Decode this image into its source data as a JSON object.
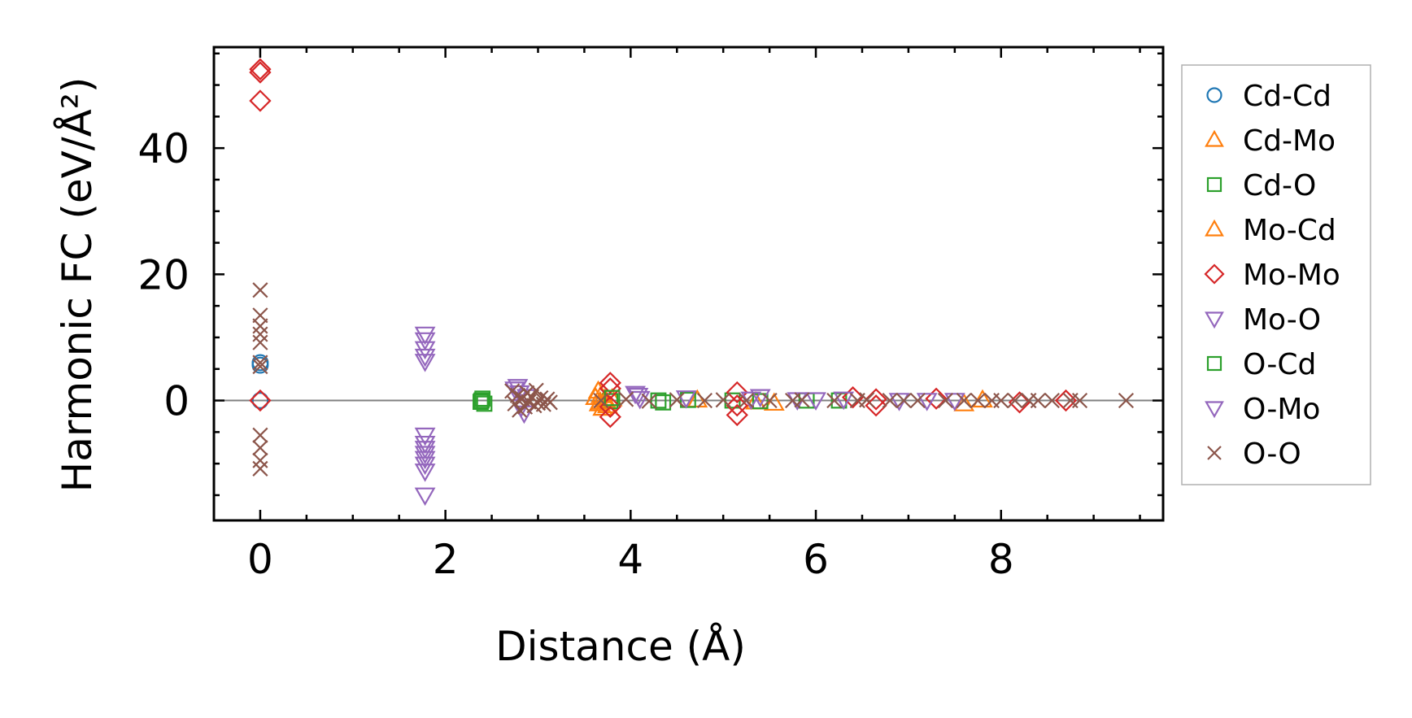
{
  "chart_data": {
    "type": "scatter",
    "xlabel": "Distance (Å)",
    "ylabel": "Harmonic FC (eV/Å²)",
    "xlim": [
      -0.5,
      9.75
    ],
    "ylim": [
      -19,
      56
    ],
    "x_ticks": [
      0,
      2,
      4,
      6,
      8
    ],
    "x_tick_labels": [
      "0",
      "2",
      "4",
      "6",
      "8"
    ],
    "y_ticks": [
      0,
      20,
      40
    ],
    "y_tick_labels": [
      "0",
      "20",
      "40"
    ],
    "x_minor_step": 0.5,
    "y_minor_step": 5,
    "zero_line": true,
    "grid": false,
    "legend_position": "outside-right",
    "series": [
      {
        "name": "Cd-Cd",
        "marker": "circle",
        "color": "#1f77b4",
        "points": [
          [
            0,
            6.0
          ],
          [
            0,
            5.6
          ],
          [
            0,
            0
          ]
        ]
      },
      {
        "name": "Cd-Mo",
        "marker": "triangle-up",
        "color": "#ff7f0e",
        "points": [
          [
            3.65,
            1.5
          ],
          [
            3.68,
            0.8
          ],
          [
            3.66,
            -0.5
          ],
          [
            3.7,
            -1.2
          ],
          [
            3.72,
            0.2
          ],
          [
            3.75,
            -0.8
          ],
          [
            3.8,
            0.3
          ],
          [
            4.72,
            0.1
          ],
          [
            5.35,
            -0.2
          ],
          [
            5.55,
            -0.4
          ],
          [
            7.6,
            -0.5
          ],
          [
            7.8,
            0.1
          ]
        ]
      },
      {
        "name": "Cd-O",
        "marker": "square",
        "color": "#2ca02c",
        "points": [
          [
            2.38,
            -0.2
          ],
          [
            2.4,
            0.3
          ],
          [
            2.42,
            -0.5
          ],
          [
            3.78,
            -0.1
          ],
          [
            4.3,
            0
          ],
          [
            4.62,
            0.1
          ],
          [
            5.1,
            0
          ],
          [
            5.4,
            -0.1
          ],
          [
            5.9,
            0
          ],
          [
            6.25,
            0
          ]
        ]
      },
      {
        "name": "Mo-Cd",
        "marker": "triangle-up",
        "color": "#ff7f0e",
        "points": [
          [
            3.62,
            0.5
          ],
          [
            3.67,
            -0.2
          ],
          [
            3.73,
            0.1
          ]
        ]
      },
      {
        "name": "Mo-Mo",
        "marker": "diamond",
        "color": "#d62728",
        "points": [
          [
            0,
            52.5
          ],
          [
            0,
            52.0
          ],
          [
            0,
            47.5
          ],
          [
            0,
            0
          ],
          [
            3.78,
            2.8
          ],
          [
            3.78,
            1.9
          ],
          [
            3.78,
            -1.0
          ],
          [
            3.78,
            -2.6
          ],
          [
            5.15,
            1.3
          ],
          [
            5.15,
            -0.8
          ],
          [
            5.15,
            -2.3
          ],
          [
            6.4,
            0.5
          ],
          [
            6.65,
            0.2
          ],
          [
            6.65,
            -0.8
          ],
          [
            7.3,
            0.3
          ],
          [
            8.2,
            -0.3
          ],
          [
            8.7,
            0
          ]
        ]
      },
      {
        "name": "Mo-O",
        "marker": "triangle-down",
        "color": "#9467bd",
        "points": [
          [
            1.78,
            10.5
          ],
          [
            1.78,
            9.6
          ],
          [
            1.78,
            8.2
          ],
          [
            1.78,
            7.0
          ],
          [
            1.78,
            6.2
          ],
          [
            1.78,
            -5.5
          ],
          [
            1.78,
            -6.8
          ],
          [
            1.78,
            -7.6
          ],
          [
            1.78,
            -8.4
          ],
          [
            1.78,
            -9.2
          ],
          [
            1.78,
            -10.1
          ],
          [
            1.78,
            -11.2
          ],
          [
            1.78,
            -15.0
          ],
          [
            2.78,
            2.2
          ],
          [
            2.8,
            1.2
          ],
          [
            2.82,
            -1.0
          ],
          [
            2.85,
            -2.0
          ],
          [
            4.05,
            1.1
          ],
          [
            4.1,
            0.3
          ],
          [
            4.6,
            0.4
          ],
          [
            5.4,
            0.6
          ],
          [
            5.8,
            0.1
          ],
          [
            6.3,
            0.2
          ],
          [
            6.9,
            0
          ],
          [
            7.5,
            0
          ]
        ]
      },
      {
        "name": "O-Cd",
        "marker": "square",
        "color": "#2ca02c",
        "points": [
          [
            2.39,
            0
          ],
          [
            3.8,
            0.4
          ],
          [
            4.35,
            -0.3
          ]
        ]
      },
      {
        "name": "O-Mo",
        "marker": "triangle-down",
        "color": "#9467bd",
        "points": [
          [
            2.75,
            1.8
          ],
          [
            2.88,
            0.6
          ],
          [
            4.08,
            0.8
          ],
          [
            5.3,
            0.2
          ],
          [
            6.0,
            0.1
          ],
          [
            7.2,
            0
          ]
        ]
      },
      {
        "name": "O-O",
        "marker": "x",
        "color": "#8c564b",
        "points": [
          [
            0,
            17.5
          ],
          [
            0,
            13.5
          ],
          [
            0,
            11.8
          ],
          [
            0,
            10.5
          ],
          [
            0,
            9.2
          ],
          [
            0,
            6.0
          ],
          [
            0,
            5.4
          ],
          [
            0,
            -5.5
          ],
          [
            0,
            -7.5
          ],
          [
            0,
            -9.5
          ],
          [
            0,
            -10.8
          ],
          [
            2.72,
            1.5
          ],
          [
            2.75,
            -0.5
          ],
          [
            2.78,
            0.8
          ],
          [
            2.8,
            -1.5
          ],
          [
            2.83,
            0.3
          ],
          [
            2.86,
            -1.0
          ],
          [
            2.88,
            1.2
          ],
          [
            2.9,
            -0.2
          ],
          [
            2.93,
            0.6
          ],
          [
            2.96,
            -0.8
          ],
          [
            2.98,
            1.6
          ],
          [
            3.0,
            -0.4
          ],
          [
            3.03,
            0.4
          ],
          [
            3.06,
            -0.6
          ],
          [
            3.1,
            0.2
          ],
          [
            3.13,
            -0.3
          ],
          [
            3.68,
            0
          ],
          [
            3.95,
            0.2
          ],
          [
            4.2,
            -0.1
          ],
          [
            4.5,
            0.1
          ],
          [
            4.8,
            0
          ],
          [
            5.0,
            0.1
          ],
          [
            5.25,
            0
          ],
          [
            5.5,
            0
          ],
          [
            5.75,
            0
          ],
          [
            5.85,
            0.1
          ],
          [
            6.2,
            0
          ],
          [
            6.45,
            0
          ],
          [
            6.55,
            0.1
          ],
          [
            6.8,
            0
          ],
          [
            6.95,
            0
          ],
          [
            7.1,
            0
          ],
          [
            7.4,
            0
          ],
          [
            7.6,
            0
          ],
          [
            7.75,
            0
          ],
          [
            7.9,
            0
          ],
          [
            8.0,
            0
          ],
          [
            8.15,
            0
          ],
          [
            8.3,
            0
          ],
          [
            8.4,
            0
          ],
          [
            8.55,
            0
          ],
          [
            8.75,
            0
          ],
          [
            8.85,
            0
          ],
          [
            9.35,
            0
          ]
        ]
      }
    ]
  }
}
